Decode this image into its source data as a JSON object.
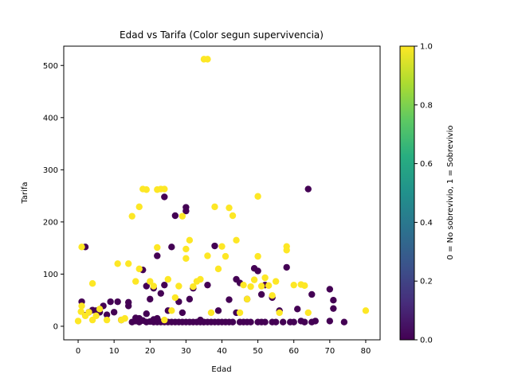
{
  "chart_data": {
    "type": "scatter",
    "title": "Edad vs Tarifa (Color segun supervivencia)",
    "xlabel": "Edad",
    "ylabel": "Tarifa",
    "xlim": [
      -4,
      84
    ],
    "ylim": [
      -26,
      537
    ],
    "xticks": [
      0,
      10,
      20,
      30,
      40,
      50,
      60,
      70,
      80
    ],
    "yticks": [
      0,
      100,
      200,
      300,
      400,
      500
    ],
    "grid": false,
    "colormap": "viridis",
    "colorbar": {
      "label": "0 = No sobrevivio, 1 = Sobrevivio",
      "range": [
        0,
        1
      ],
      "ticks": [
        "0.0",
        "0.2",
        "0.4",
        "0.6",
        "0.8",
        "1.0"
      ]
    },
    "colors": {
      "not_survived": "#440154",
      "survived": "#fde725"
    },
    "points_not_survived": [
      [
        1,
        47
      ],
      [
        2,
        152
      ],
      [
        2,
        21
      ],
      [
        3,
        27
      ],
      [
        4,
        31
      ],
      [
        5,
        30
      ],
      [
        6,
        27
      ],
      [
        7,
        39
      ],
      [
        8,
        22
      ],
      [
        9,
        47
      ],
      [
        10,
        27
      ],
      [
        11,
        47
      ],
      [
        12,
        12
      ],
      [
        14,
        39
      ],
      [
        14,
        46
      ],
      [
        15,
        8
      ],
      [
        16,
        10
      ],
      [
        16,
        16
      ],
      [
        17,
        8
      ],
      [
        17,
        15
      ],
      [
        18,
        108
      ],
      [
        18,
        11
      ],
      [
        19,
        8
      ],
      [
        19,
        24
      ],
      [
        19,
        77
      ],
      [
        20,
        9
      ],
      [
        20,
        52
      ],
      [
        21,
        8
      ],
      [
        21,
        13
      ],
      [
        21,
        73
      ],
      [
        22,
        8
      ],
      [
        22,
        135
      ],
      [
        22,
        15
      ],
      [
        23,
        8
      ],
      [
        23,
        63
      ],
      [
        24,
        248
      ],
      [
        24,
        8
      ],
      [
        24,
        79
      ],
      [
        25,
        8
      ],
      [
        25,
        30
      ],
      [
        26,
        8
      ],
      [
        26,
        152
      ],
      [
        27,
        212
      ],
      [
        27,
        8
      ],
      [
        28,
        8
      ],
      [
        28,
        47
      ],
      [
        29,
        8
      ],
      [
        29,
        26
      ],
      [
        30,
        221
      ],
      [
        30,
        228
      ],
      [
        30,
        8
      ],
      [
        31,
        8
      ],
      [
        31,
        52
      ],
      [
        32,
        8
      ],
      [
        32,
        73
      ],
      [
        33,
        8
      ],
      [
        34,
        8
      ],
      [
        34,
        12
      ],
      [
        35,
        8
      ],
      [
        36,
        8
      ],
      [
        36,
        79
      ],
      [
        37,
        8
      ],
      [
        38,
        154
      ],
      [
        38,
        8
      ],
      [
        39,
        8
      ],
      [
        39,
        30
      ],
      [
        40,
        8
      ],
      [
        41,
        8
      ],
      [
        42,
        8
      ],
      [
        42,
        51
      ],
      [
        43,
        8
      ],
      [
        44,
        90
      ],
      [
        44,
        26
      ],
      [
        45,
        8
      ],
      [
        45,
        83
      ],
      [
        46,
        8
      ],
      [
        47,
        8
      ],
      [
        47,
        52
      ],
      [
        48,
        8
      ],
      [
        49,
        111
      ],
      [
        50,
        8
      ],
      [
        50,
        106
      ],
      [
        51,
        8
      ],
      [
        51,
        61
      ],
      [
        52,
        8
      ],
      [
        52,
        79
      ],
      [
        54,
        8
      ],
      [
        54,
        55
      ],
      [
        55,
        8
      ],
      [
        56,
        30
      ],
      [
        57,
        8
      ],
      [
        58,
        113
      ],
      [
        59,
        8
      ],
      [
        60,
        8
      ],
      [
        61,
        33
      ],
      [
        62,
        10
      ],
      [
        63,
        8
      ],
      [
        64,
        263
      ],
      [
        65,
        8
      ],
      [
        65,
        61
      ],
      [
        66,
        10
      ],
      [
        70,
        71
      ],
      [
        70,
        10
      ],
      [
        71,
        34
      ],
      [
        71,
        50
      ],
      [
        74,
        8
      ]
    ],
    "points_survived": [
      [
        0,
        10
      ],
      [
        0.8,
        28
      ],
      [
        1,
        152
      ],
      [
        1,
        39
      ],
      [
        2,
        20
      ],
      [
        3,
        27
      ],
      [
        4,
        82
      ],
      [
        4,
        12
      ],
      [
        5,
        20
      ],
      [
        6,
        33
      ],
      [
        8,
        12
      ],
      [
        11,
        120
      ],
      [
        12,
        12
      ],
      [
        13,
        15
      ],
      [
        14,
        120
      ],
      [
        15,
        211
      ],
      [
        16,
        86
      ],
      [
        17,
        110
      ],
      [
        17,
        229
      ],
      [
        18,
        263
      ],
      [
        19,
        262
      ],
      [
        20,
        86
      ],
      [
        21,
        77
      ],
      [
        22,
        262
      ],
      [
        22,
        151
      ],
      [
        23,
        263
      ],
      [
        24,
        263
      ],
      [
        24,
        12
      ],
      [
        25,
        90
      ],
      [
        26,
        30
      ],
      [
        27,
        55
      ],
      [
        28,
        77
      ],
      [
        29,
        211
      ],
      [
        30,
        148
      ],
      [
        30,
        130
      ],
      [
        31,
        165
      ],
      [
        32,
        76
      ],
      [
        33,
        86
      ],
      [
        34,
        90
      ],
      [
        35,
        512
      ],
      [
        36,
        512
      ],
      [
        36,
        135
      ],
      [
        37,
        26
      ],
      [
        38,
        229
      ],
      [
        39,
        110
      ],
      [
        40,
        153
      ],
      [
        41,
        134
      ],
      [
        42,
        227
      ],
      [
        43,
        212
      ],
      [
        44,
        165
      ],
      [
        45,
        26
      ],
      [
        46,
        79
      ],
      [
        47,
        52
      ],
      [
        48,
        76
      ],
      [
        49,
        89
      ],
      [
        50,
        249
      ],
      [
        50,
        134
      ],
      [
        51,
        77
      ],
      [
        52,
        93
      ],
      [
        53,
        78
      ],
      [
        54,
        59
      ],
      [
        55,
        86
      ],
      [
        56,
        26
      ],
      [
        58,
        153
      ],
      [
        58,
        146
      ],
      [
        60,
        79
      ],
      [
        62,
        80
      ],
      [
        63,
        78
      ],
      [
        64,
        26
      ],
      [
        80,
        30
      ]
    ]
  }
}
